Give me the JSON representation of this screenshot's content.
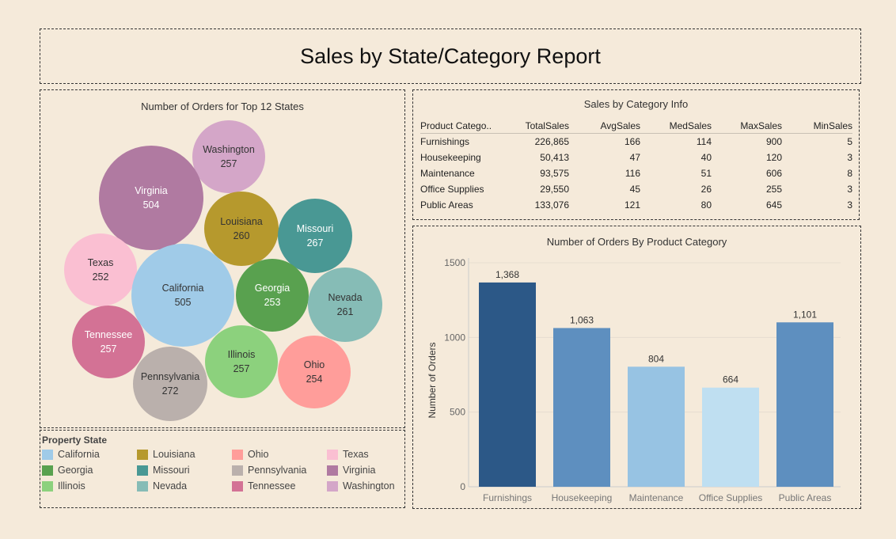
{
  "report": {
    "title": "Sales by State/Category Report"
  },
  "bubble_chart": {
    "title": "Number of Orders for Top 12 States",
    "bubbles": [
      {
        "state": "Washington",
        "orders": "257",
        "color": "#d4a6c8"
      },
      {
        "state": "Virginia",
        "orders": "504",
        "color": "#b07aa1"
      },
      {
        "state": "Louisiana",
        "orders": "260",
        "color": "#b6992d"
      },
      {
        "state": "Missouri",
        "orders": "267",
        "color": "#499894"
      },
      {
        "state": "Texas",
        "orders": "252",
        "color": "#fabfd2"
      },
      {
        "state": "California",
        "orders": "505",
        "color": "#a0cbe8"
      },
      {
        "state": "Georgia",
        "orders": "253",
        "color": "#59a14f"
      },
      {
        "state": "Nevada",
        "orders": "261",
        "color": "#86bcb6"
      },
      {
        "state": "Tennessee",
        "orders": "257",
        "color": "#d37295"
      },
      {
        "state": "Illinois",
        "orders": "257",
        "color": "#8cd17d"
      },
      {
        "state": "Pennsylvania",
        "orders": "272",
        "color": "#bab0ac"
      },
      {
        "state": "Ohio",
        "orders": "254",
        "color": "#ff9d9a"
      }
    ]
  },
  "legend": {
    "title": "Property State",
    "items": [
      {
        "label": "California",
        "color": "#a0cbe8"
      },
      {
        "label": "Louisiana",
        "color": "#b6992d"
      },
      {
        "label": "Ohio",
        "color": "#ff9d9a"
      },
      {
        "label": "Texas",
        "color": "#fabfd2"
      },
      {
        "label": "Georgia",
        "color": "#59a14f"
      },
      {
        "label": "Missouri",
        "color": "#499894"
      },
      {
        "label": "Pennsylvania",
        "color": "#bab0ac"
      },
      {
        "label": "Virginia",
        "color": "#b07aa1"
      },
      {
        "label": "Illinois",
        "color": "#8cd17d"
      },
      {
        "label": "Nevada",
        "color": "#86bcb6"
      },
      {
        "label": "Tennessee",
        "color": "#d37295"
      },
      {
        "label": "Washington",
        "color": "#d4a6c8"
      }
    ]
  },
  "category_table": {
    "title": "Sales by Category Info",
    "headers": [
      "Product Catego..",
      "TotalSales",
      "AvgSales",
      "MedSales",
      "MaxSales",
      "MinSales"
    ],
    "rows": [
      [
        "Furnishings",
        "226,865",
        "166",
        "114",
        "900",
        "5"
      ],
      [
        "Housekeeping",
        "50,413",
        "47",
        "40",
        "120",
        "3"
      ],
      [
        "Maintenance",
        "93,575",
        "116",
        "51",
        "606",
        "8"
      ],
      [
        "Office Supplies",
        "29,550",
        "45",
        "26",
        "255",
        "3"
      ],
      [
        "Public Areas",
        "133,076",
        "121",
        "80",
        "645",
        "3"
      ]
    ]
  },
  "chart_data": {
    "type": "bar",
    "title": "Number of Orders By Product Category",
    "xlabel": "",
    "ylabel": "Number of Orders",
    "categories": [
      "Furnishings",
      "Housekeeping",
      "Maintenance",
      "Office Supplies",
      "Public Areas"
    ],
    "values": [
      1368,
      1063,
      804,
      664,
      1101
    ],
    "value_labels": [
      "1,368",
      "1,063",
      "804",
      "664",
      "1,101"
    ],
    "bar_colors": [
      "#2c5887",
      "#5e8fbf",
      "#97c3e3",
      "#bfdff1",
      "#5e8fbf"
    ],
    "yticks": [
      "0",
      "500",
      "1000",
      "1500"
    ],
    "ylim": [
      0,
      1500
    ],
    "grid": true
  }
}
